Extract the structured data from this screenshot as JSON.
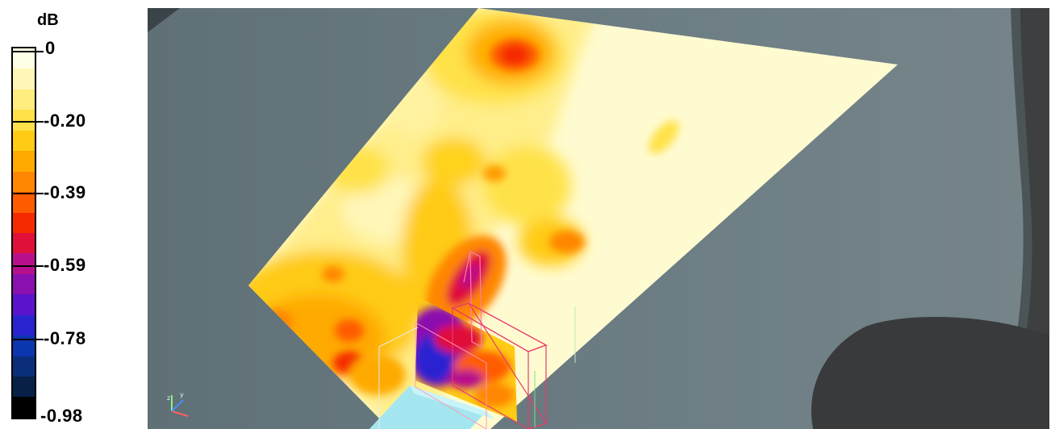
{
  "legend": {
    "unit": "dB",
    "ticks": [
      "0",
      "-0.20",
      "-0.39",
      "-0.59",
      "-0.78",
      "-0.98"
    ],
    "colors": [
      "#ffffe6",
      "#fff6b8",
      "#ffed80",
      "#ffe24a",
      "#ffcb14",
      "#ffaa00",
      "#ff8600",
      "#ff5c00",
      "#f52a00",
      "#e0103a",
      "#b8108c",
      "#8a10b0",
      "#5a14cc",
      "#2a24d0",
      "#0c36b0",
      "#0a2e7a",
      "#082048",
      "#000000"
    ]
  },
  "viewport": {
    "background": "#6f8086",
    "plane_color": "#fffbd1",
    "axis_icon": "xyz-axes-icon"
  }
}
